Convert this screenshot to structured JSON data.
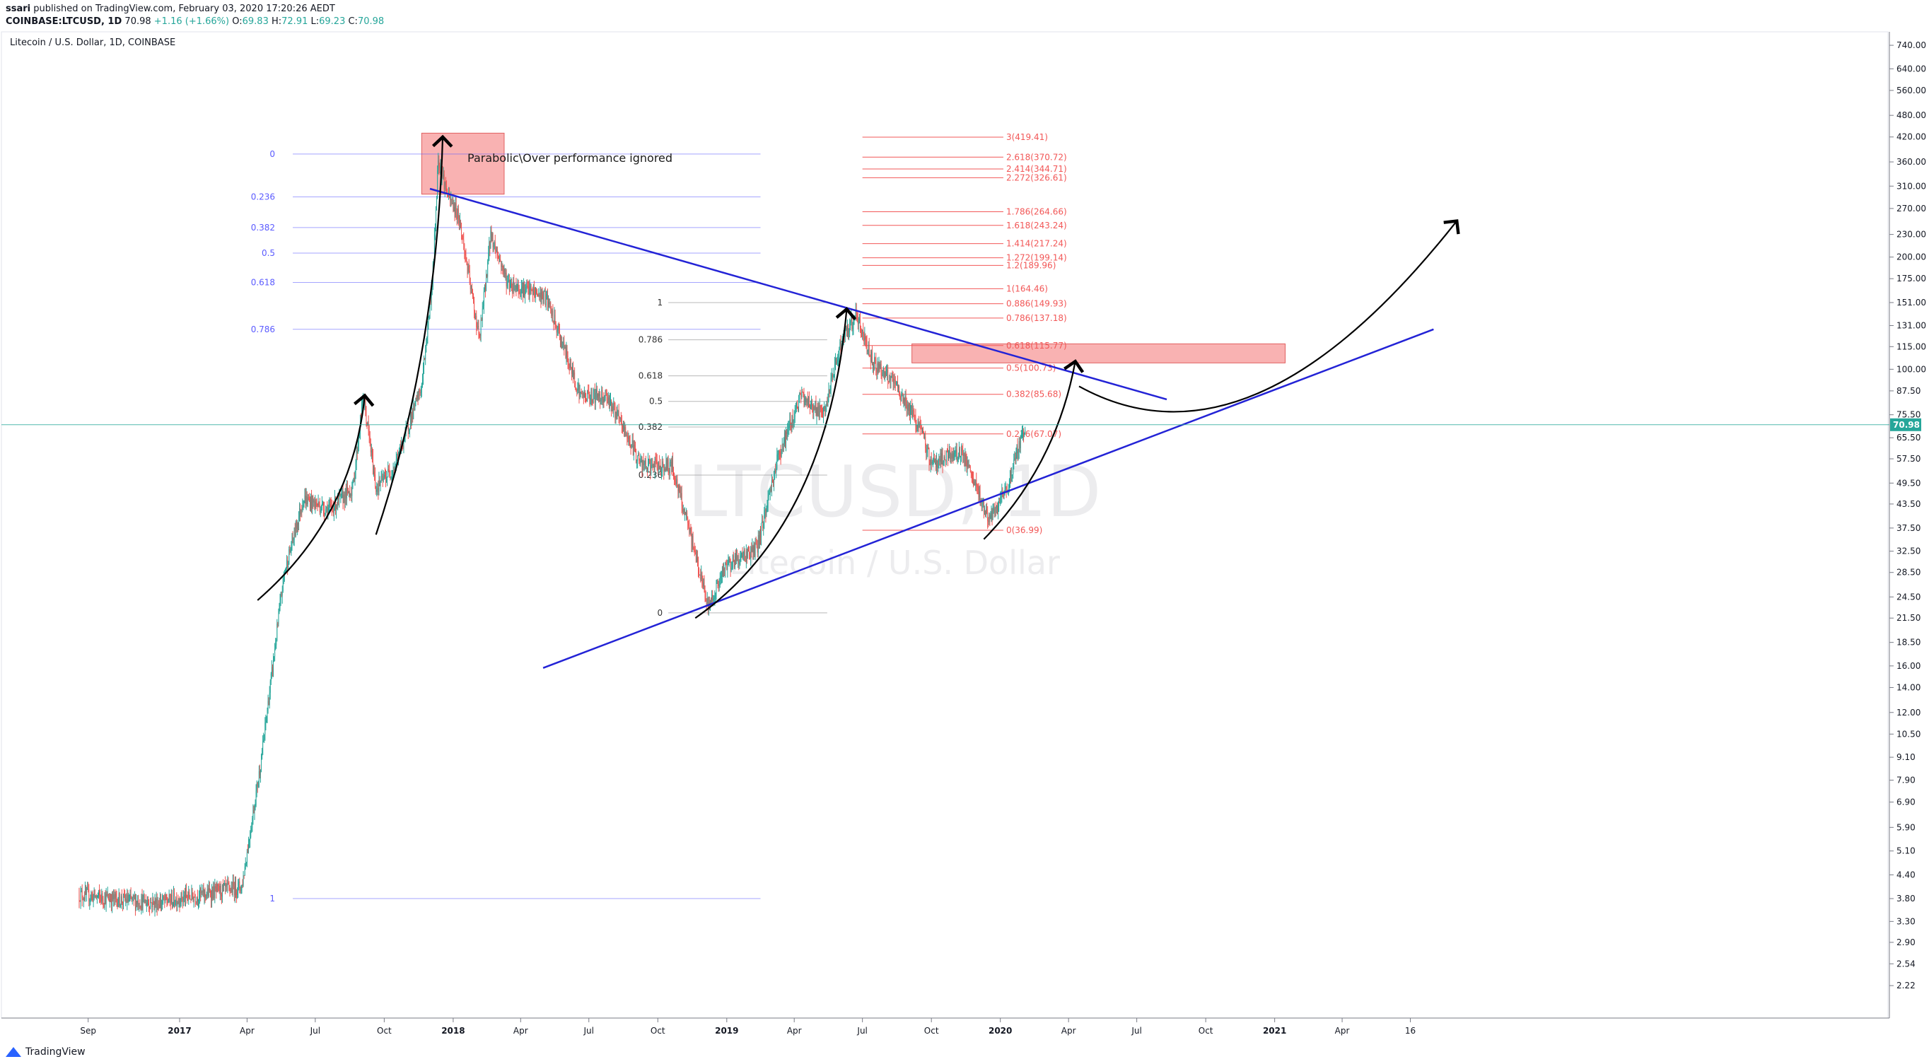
{
  "header": {
    "publisher": "ssari",
    "published_text": "published on TradingView.com, February 03, 2020 17:20:26 AEDT",
    "symbol_line": "COINBASE:LTCUSD, 1D",
    "last": "70.98",
    "change": "+1.16 (+1.66%)",
    "open_label": "O:",
    "open": "69.83",
    "high_label": "H:",
    "high": "72.91",
    "low_label": "L:",
    "low": "69.23",
    "close_label": "C:",
    "close": "70.98"
  },
  "footer": {
    "brand": "TradingView"
  },
  "colors": {
    "up": "#26a69a",
    "down": "#ef5350",
    "trendline": "#2323d6",
    "fib_left": "#5b5bff",
    "fib_red": "#f25757",
    "zone": "#f8a4a4"
  },
  "chart_data": {
    "type": "candlestick",
    "title": "Litecoin / U.S. Dollar, 1D, COINBASE",
    "watermark": "LTCUSD, 1D",
    "watermark_sub": "Litecoin / U.S. Dollar",
    "y_scale": "log",
    "ylim": [
      2.0,
      780
    ],
    "price_axis_ticks": [
      "740.00",
      "640.00",
      "560.00",
      "480.00",
      "420.00",
      "360.00",
      "310.00",
      "270.00",
      "230.00",
      "200.00",
      "175.00",
      "151.00",
      "131.00",
      "115.00",
      "100.00",
      "87.50",
      "75.50",
      "65.50",
      "57.50",
      "49.50",
      "43.50",
      "37.50",
      "32.50",
      "28.50",
      "24.50",
      "21.50",
      "18.50",
      "16.00",
      "14.00",
      "12.00",
      "10.50",
      "9.10",
      "7.90",
      "6.90",
      "5.90",
      "5.10",
      "4.40",
      "3.80",
      "3.30",
      "2.90",
      "2.54",
      "2.22"
    ],
    "current_price_label": "70.98",
    "current_price": 70.98,
    "time_axis_ticks": [
      "Sep",
      "2017",
      "Apr",
      "Jul",
      "Oct",
      "2018",
      "Apr",
      "Jul",
      "Oct",
      "2019",
      "Apr",
      "Jul",
      "Oct",
      "2020",
      "Apr",
      "Jul",
      "Oct",
      "2021",
      "Apr",
      "16"
    ],
    "price_path": [
      [
        "2016-08-20",
        3.9
      ],
      [
        "2016-10-01",
        3.8
      ],
      [
        "2016-12-01",
        3.7
      ],
      [
        "2017-02-01",
        3.9
      ],
      [
        "2017-03-25",
        4.1
      ],
      [
        "2017-04-20",
        9.0
      ],
      [
        "2017-05-20",
        28
      ],
      [
        "2017-06-15",
        45
      ],
      [
        "2017-07-20",
        42
      ],
      [
        "2017-08-20",
        48
      ],
      [
        "2017-09-03",
        85
      ],
      [
        "2017-09-20",
        48
      ],
      [
        "2017-10-15",
        55
      ],
      [
        "2017-11-20",
        90
      ],
      [
        "2017-12-05",
        180
      ],
      [
        "2017-12-12",
        370
      ],
      [
        "2017-12-25",
        290
      ],
      [
        "2018-01-08",
        260
      ],
      [
        "2018-02-05",
        120
      ],
      [
        "2018-02-20",
        230
      ],
      [
        "2018-03-15",
        170
      ],
      [
        "2018-04-20",
        160
      ],
      [
        "2018-05-05",
        155
      ],
      [
        "2018-06-20",
        85
      ],
      [
        "2018-07-25",
        85
      ],
      [
        "2018-09-10",
        55
      ],
      [
        "2018-10-20",
        55
      ],
      [
        "2018-11-20",
        32
      ],
      [
        "2018-12-07",
        23
      ],
      [
        "2019-01-01",
        30
      ],
      [
        "2019-02-10",
        33
      ],
      [
        "2019-03-10",
        58
      ],
      [
        "2019-04-10",
        85
      ],
      [
        "2019-05-10",
        75
      ],
      [
        "2019-06-01",
        115
      ],
      [
        "2019-06-22",
        140
      ],
      [
        "2019-07-15",
        105
      ],
      [
        "2019-08-15",
        90
      ],
      [
        "2019-09-15",
        70
      ],
      [
        "2019-10-01",
        56
      ],
      [
        "2019-11-10",
        60
      ],
      [
        "2019-12-18",
        39
      ],
      [
        "2020-01-10",
        48
      ],
      [
        "2020-01-25",
        62
      ],
      [
        "2020-02-03",
        70.98
      ]
    ],
    "fib_retracement_left": {
      "levels": [
        "0",
        "0.236",
        "0.382",
        "0.5",
        "0.618",
        "0.786",
        "1"
      ],
      "level_prices": [
        378,
        290,
        240,
        205,
        171,
        128,
        3.8
      ],
      "x_range": [
        "2017-06-01",
        "2019-02-15"
      ]
    },
    "fib_retracement_middle": {
      "levels": [
        "1",
        "0.786",
        "0.618",
        "0.5",
        "0.382",
        "0.236",
        "0"
      ],
      "level_prices": [
        151,
        120,
        96,
        82,
        70,
        52,
        22.2
      ],
      "x_range": [
        "2018-10-15",
        "2019-05-15"
      ]
    },
    "fib_extension_right": {
      "labels": [
        "3(419.41)",
        "2.618(370.72)",
        "2.414(344.71)",
        "2.272(326.61)",
        "1.786(264.66)",
        "1.618(243.24)",
        "1.414(217.24)",
        "1.272(199.14)",
        "1.2(189.96)",
        "1(164.46)",
        "0.886(149.93)",
        "0.786(137.18)",
        "0.618(115.77)",
        "0.5(100.73)",
        "0.382(85.68)",
        "0.236(67.07)",
        "0(36.99)"
      ],
      "prices": [
        419.41,
        370.72,
        344.71,
        326.61,
        264.66,
        243.24,
        217.24,
        199.14,
        189.96,
        164.46,
        149.93,
        137.18,
        115.77,
        100.73,
        85.68,
        67.07,
        36.99
      ],
      "x_range": [
        "2019-07-01",
        "2020-01-05"
      ]
    },
    "annotations": [
      {
        "type": "text",
        "text": "Parabolic\\Over performance ignored",
        "date": "2018-01-20",
        "price": 360
      },
      {
        "type": "zone",
        "from": "2017-11-20",
        "to": "2018-03-10",
        "low": 295,
        "high": 430
      },
      {
        "type": "zone",
        "from": "2019-09-05",
        "to": "2021-01-15",
        "low": 104,
        "high": 117
      }
    ],
    "trendlines": [
      {
        "name": "descending",
        "from": [
          "2017-12-01",
          305
        ],
        "to": [
          "2020-08-10",
          83
        ]
      },
      {
        "name": "ascending",
        "from": [
          "2018-05-01",
          15.8
        ],
        "to": [
          "2021-08-01",
          128
        ]
      }
    ]
  }
}
